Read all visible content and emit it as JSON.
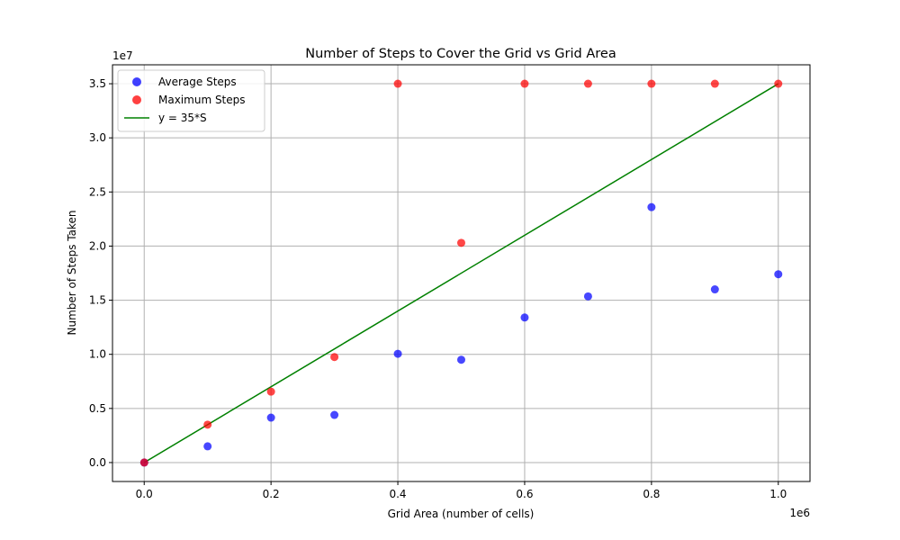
{
  "chart_data": {
    "type": "scatter",
    "title": "Number of Steps to Cover the Grid vs Grid Area",
    "xlabel": "Grid Area (number of cells)",
    "ylabel": "Number of Steps Taken",
    "x_offset_label": "1e6",
    "y_offset_label": "1e7",
    "xlim": [
      -50000,
      1050000
    ],
    "ylim": [
      -1750000,
      36750000
    ],
    "x_ticks": [
      0,
      200000,
      400000,
      600000,
      800000,
      1000000
    ],
    "x_tick_labels": [
      "0.0",
      "0.2",
      "0.4",
      "0.6",
      "0.8",
      "1.0"
    ],
    "y_ticks": [
      0,
      5000000,
      10000000,
      15000000,
      20000000,
      25000000,
      30000000,
      35000000
    ],
    "y_tick_labels": [
      "0.0",
      "0.5",
      "1.0",
      "1.5",
      "2.0",
      "2.5",
      "3.0",
      "3.5"
    ],
    "grid": true,
    "legend_position": "top-left",
    "series": [
      {
        "name": "Average Steps",
        "kind": "scatter",
        "color": "#0000ff",
        "x": [
          100,
          100000,
          200000,
          300000,
          400000,
          500000,
          600000,
          700000,
          800000,
          900000,
          1000000
        ],
        "y": [
          3000,
          1500000,
          4150000,
          4400000,
          10050000,
          9500000,
          13400000,
          15350000,
          23600000,
          16000000,
          17400000
        ]
      },
      {
        "name": "Maximum Steps",
        "kind": "scatter",
        "color": "#ff0000",
        "x": [
          100,
          100000,
          200000,
          300000,
          400000,
          500000,
          600000,
          700000,
          800000,
          900000,
          1000000
        ],
        "y": [
          3500,
          3500000,
          6550000,
          9750000,
          35000000,
          20300000,
          35000000,
          35000000,
          35000000,
          35000000,
          35000000
        ]
      },
      {
        "name": "y = 35*S",
        "kind": "line",
        "color": "#008000",
        "x": [
          0,
          1000000
        ],
        "y": [
          0,
          35000000
        ]
      }
    ]
  }
}
